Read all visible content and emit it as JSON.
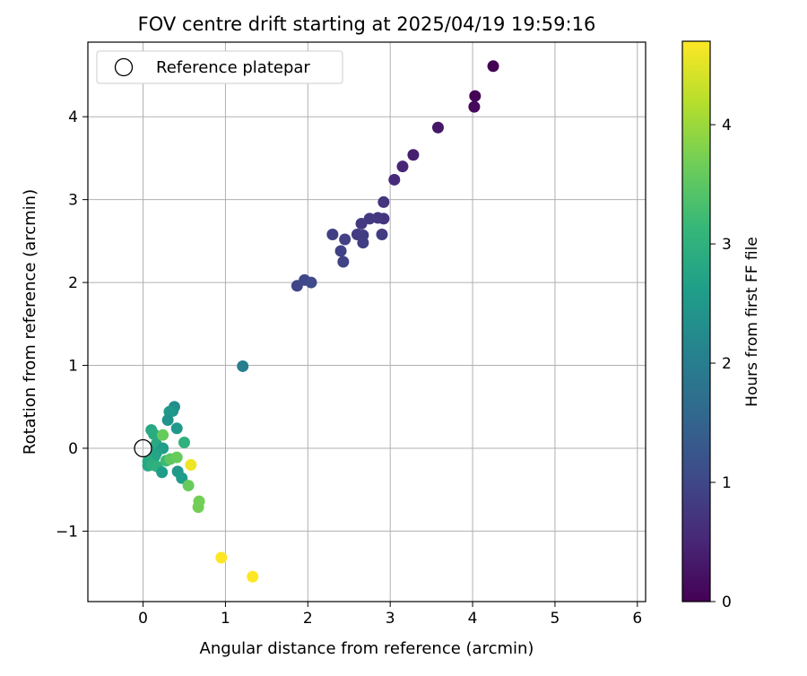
{
  "chart_data": {
    "type": "scatter",
    "title": "FOV centre drift starting at 2025/04/19 19:59:16",
    "xlabel": "Angular distance from reference (arcmin)",
    "ylabel": "Rotation from reference (arcmin)",
    "xlim": [
      -0.67,
      6.1
    ],
    "ylim": [
      -1.85,
      4.9
    ],
    "xticks": [
      0,
      1,
      2,
      3,
      4,
      5,
      6
    ],
    "yticks": [
      -1,
      0,
      1,
      2,
      3,
      4
    ],
    "grid": true,
    "legend": {
      "placement": "top-left",
      "entries": [
        {
          "label": "Reference platepar",
          "marker": "open-circle"
        }
      ]
    },
    "reference": {
      "x": 0,
      "y": 0
    },
    "colorbar": {
      "label": "Hours from first FF file",
      "colormap": "viridis",
      "range": [
        0,
        4.7
      ],
      "ticks": [
        0,
        1,
        2,
        3,
        4
      ]
    },
    "series": [
      {
        "points": [
          {
            "x": 4.25,
            "y": 4.61,
            "c": 0.0
          },
          {
            "x": 4.03,
            "y": 4.25,
            "c": 0.05
          },
          {
            "x": 4.02,
            "y": 4.12,
            "c": 0.1
          },
          {
            "x": 3.58,
            "y": 3.87,
            "c": 0.3
          },
          {
            "x": 3.28,
            "y": 3.54,
            "c": 0.4
          },
          {
            "x": 3.15,
            "y": 3.4,
            "c": 0.5
          },
          {
            "x": 3.05,
            "y": 3.24,
            "c": 0.55
          },
          {
            "x": 2.92,
            "y": 2.97,
            "c": 0.7
          },
          {
            "x": 2.92,
            "y": 2.77,
            "c": 0.72
          },
          {
            "x": 2.85,
            "y": 2.78,
            "c": 0.75
          },
          {
            "x": 2.75,
            "y": 2.77,
            "c": 0.78
          },
          {
            "x": 2.65,
            "y": 2.71,
            "c": 0.8
          },
          {
            "x": 2.6,
            "y": 2.58,
            "c": 0.82
          },
          {
            "x": 2.67,
            "y": 2.57,
            "c": 0.85
          },
          {
            "x": 2.9,
            "y": 2.58,
            "c": 0.83
          },
          {
            "x": 2.67,
            "y": 2.48,
            "c": 0.87
          },
          {
            "x": 2.3,
            "y": 2.58,
            "c": 0.88
          },
          {
            "x": 2.45,
            "y": 2.52,
            "c": 0.9
          },
          {
            "x": 2.4,
            "y": 2.38,
            "c": 0.92
          },
          {
            "x": 2.43,
            "y": 2.25,
            "c": 0.95
          },
          {
            "x": 1.87,
            "y": 1.96,
            "c": 1.0
          },
          {
            "x": 1.96,
            "y": 2.03,
            "c": 1.02
          },
          {
            "x": 2.04,
            "y": 2.0,
            "c": 1.05
          },
          {
            "x": 1.21,
            "y": 0.99,
            "c": 2.0
          },
          {
            "x": 0.38,
            "y": 0.5,
            "c": 2.3
          },
          {
            "x": 0.36,
            "y": 0.45,
            "c": 2.4
          },
          {
            "x": 0.32,
            "y": 0.44,
            "c": 2.5
          },
          {
            "x": 0.3,
            "y": 0.34,
            "c": 2.4
          },
          {
            "x": 0.41,
            "y": 0.24,
            "c": 2.5
          },
          {
            "x": 0.1,
            "y": 0.22,
            "c": 2.8
          },
          {
            "x": 0.13,
            "y": 0.17,
            "c": 2.9
          },
          {
            "x": 0.16,
            "y": 0.05,
            "c": 2.85
          },
          {
            "x": 0.24,
            "y": 0.0,
            "c": 2.6
          },
          {
            "x": 0.16,
            "y": -0.06,
            "c": 2.7
          },
          {
            "x": 0.14,
            "y": -0.1,
            "c": 2.75
          },
          {
            "x": 0.06,
            "y": -0.16,
            "c": 2.9
          },
          {
            "x": 0.06,
            "y": -0.21,
            "c": 2.8
          },
          {
            "x": 0.11,
            "y": -0.2,
            "c": 2.95
          },
          {
            "x": 0.17,
            "y": -0.22,
            "c": 3.0
          },
          {
            "x": 0.23,
            "y": -0.29,
            "c": 2.6
          },
          {
            "x": 0.28,
            "y": -0.15,
            "c": 3.2
          },
          {
            "x": 0.42,
            "y": -0.28,
            "c": 2.5
          },
          {
            "x": 0.47,
            "y": -0.36,
            "c": 2.6
          },
          {
            "x": 0.5,
            "y": 0.07,
            "c": 3.0
          },
          {
            "x": 0.24,
            "y": 0.16,
            "c": 3.6
          },
          {
            "x": 0.33,
            "y": -0.13,
            "c": 3.5
          },
          {
            "x": 0.41,
            "y": -0.11,
            "c": 3.6
          },
          {
            "x": 0.55,
            "y": -0.45,
            "c": 3.6
          },
          {
            "x": 0.68,
            "y": -0.64,
            "c": 3.7
          },
          {
            "x": 0.67,
            "y": -0.71,
            "c": 3.7
          },
          {
            "x": 0.58,
            "y": -0.2,
            "c": 4.6
          },
          {
            "x": 0.95,
            "y": -1.32,
            "c": 4.7
          },
          {
            "x": 1.33,
            "y": -1.55,
            "c": 4.7
          }
        ]
      }
    ]
  }
}
